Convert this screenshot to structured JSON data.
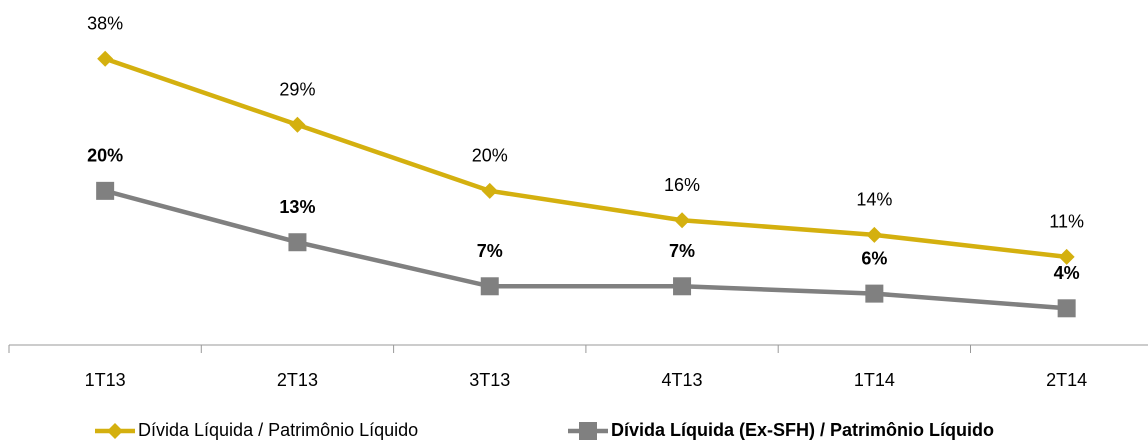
{
  "chart_data": {
    "type": "line",
    "categories": [
      "1T13",
      "2T13",
      "3T13",
      "4T13",
      "1T14",
      "2T14"
    ],
    "series": [
      {
        "name": "Dívida Líquida / Patrimônio Líquido",
        "color": "#d4b00f",
        "marker": "diamond",
        "label_weight": "normal",
        "values": [
          38,
          29,
          20,
          16,
          14,
          11
        ],
        "value_labels": [
          "38%",
          "29%",
          "20%",
          "16%",
          "14%",
          "11%"
        ]
      },
      {
        "name": "Dívida Líquida (Ex-SFH) / Patrimônio Líquido",
        "color": "#808080",
        "marker": "square",
        "label_weight": "bold",
        "values": [
          20,
          13,
          7,
          7,
          6,
          4
        ],
        "value_labels": [
          "20%",
          "13%",
          "7%",
          "7%",
          "6%",
          "4%"
        ]
      }
    ],
    "ylim": [
      -1,
      46
    ],
    "legend": "bottom"
  }
}
